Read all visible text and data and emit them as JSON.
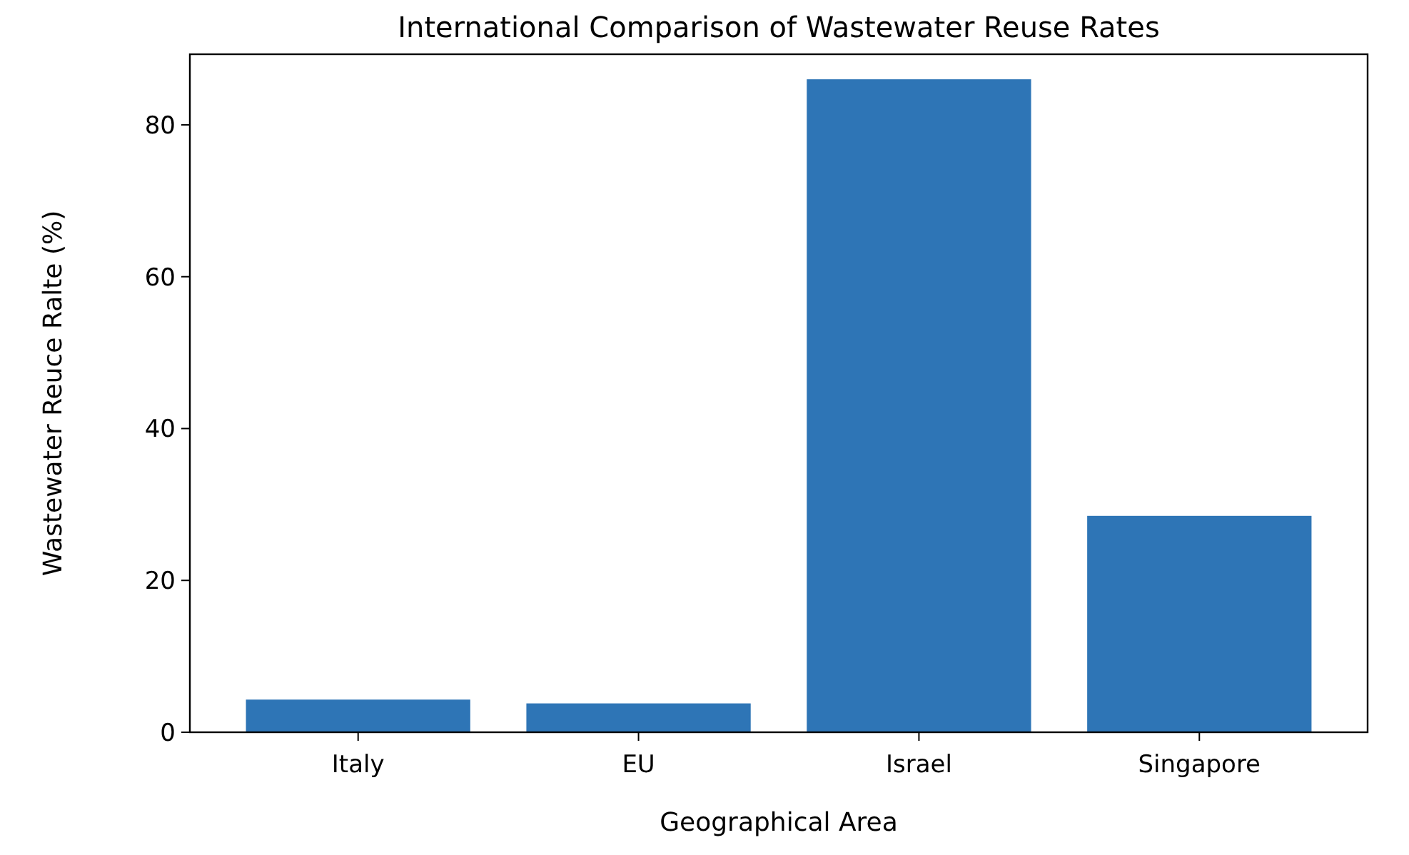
{
  "chart_data": {
    "type": "bar",
    "title": "International Comparison of Wastewater Reuse Rates",
    "xlabel": "Geographical Area",
    "ylabel": "Wastewater Reuce Ralte (%)",
    "categories": [
      "Italy",
      "EU",
      "Israel",
      "Singapore"
    ],
    "values": [
      4.3,
      3.8,
      86.0,
      28.5
    ],
    "color": "#2e75b6",
    "ylim": [
      0,
      89.3
    ],
    "yticks": [
      0,
      20,
      40,
      60,
      80
    ],
    "grid": false
  }
}
